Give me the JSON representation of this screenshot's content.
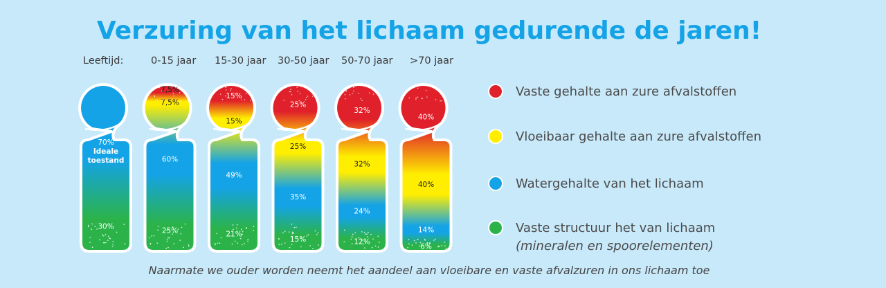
{
  "title": "Verzuring van het lichaam gedurende de jaren!",
  "age_header": "Leeftijd:",
  "footer": "Naarmate we ouder worden neemt het aandeel aan vloeibare en vaste afvalzuren in ons lichaam toe",
  "colors": {
    "background": "#c8e9fa",
    "title": "#14a3e6",
    "solid_waste": "#e0202a",
    "liquid_waste": "#ffee00",
    "water": "#14a3e6",
    "structure": "#2bb34a"
  },
  "legend": [
    {
      "label": "Vaste gehalte aan zure afvalstoffen",
      "sub": "",
      "color": "#e0202a"
    },
    {
      "label": "Vloeibaar gehalte aan zure afvalstoffen",
      "sub": "",
      "color": "#ffee00"
    },
    {
      "label": "Watergehalte van het lichaam",
      "sub": "",
      "color": "#14a3e6"
    },
    {
      "label": "Vaste structuur het van lichaam",
      "sub": "(mineralen en spoorelementen)",
      "color": "#2bb34a"
    }
  ],
  "chart_data": {
    "type": "bar",
    "stacked": true,
    "title": "Verzuring van het lichaam gedurende de jaren!",
    "xlabel": "Leeftijd:",
    "categories": [
      "",
      "0-15 jaar",
      "15-30 jaar",
      "30-50 jaar",
      "50-70 jaar",
      ">70 jaar"
    ],
    "ideal_label": [
      "Ideale",
      "toestand"
    ],
    "series": [
      {
        "name": "Vaste gehalte aan zure afvalstoffen",
        "color": "#e0202a",
        "values": [
          0,
          7.5,
          15,
          25,
          32,
          40
        ]
      },
      {
        "name": "Vloeibaar gehalte aan zure afvalstoffen",
        "color": "#ffee00",
        "values": [
          0,
          7.5,
          15,
          25,
          32,
          40
        ]
      },
      {
        "name": "Watergehalte van het lichaam",
        "color": "#14a3e6",
        "values": [
          70,
          60,
          49,
          35,
          24,
          14
        ]
      },
      {
        "name": "Vaste structuur het van lichaam",
        "color": "#2bb34a",
        "values": [
          30,
          25,
          21,
          15,
          12,
          6
        ]
      }
    ],
    "value_labels": [
      [
        "",
        "",
        "70%",
        "30%"
      ],
      [
        "7,5%",
        "7,5%",
        "60%",
        "25%"
      ],
      [
        "15%",
        "15%",
        "49%",
        "21%"
      ],
      [
        "25%",
        "25%",
        "35%",
        "15%"
      ],
      [
        "32%",
        "32%",
        "24%",
        "12%"
      ],
      [
        "40%",
        "40%",
        "14%",
        "6%"
      ]
    ],
    "ylim": [
      0,
      100
    ],
    "legend_position": "right"
  }
}
